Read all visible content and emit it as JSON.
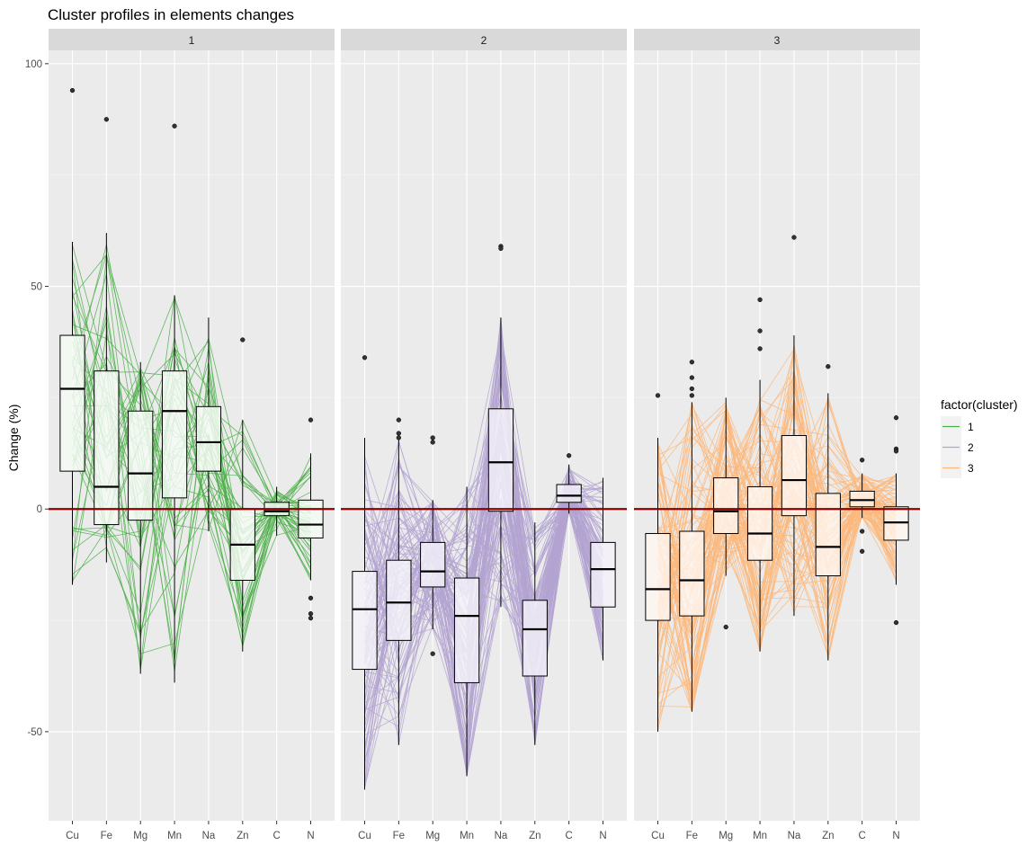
{
  "chart_data": {
    "type": "box",
    "title": "Cluster profiles in elements changes",
    "ylabel": "Change (%)",
    "xlabel": "",
    "categories": [
      "Cu",
      "Fe",
      "Mg",
      "Mn",
      "Na",
      "Zn",
      "C",
      "N"
    ],
    "y_ticks": [
      -50,
      0,
      50,
      100
    ],
    "ylim": [
      -70,
      103
    ],
    "reference_line": {
      "y": 0,
      "color": "#8B0000"
    },
    "legend": {
      "title": "factor(cluster)",
      "position": "right"
    },
    "panels": [
      {
        "strip": "1",
        "series_name": "1",
        "line_color": "#4DAF4A",
        "box_fill": "#F4FAF4",
        "boxes": [
          {
            "cat": "Cu",
            "lo": -17,
            "q1": 8.5,
            "med": 27,
            "q3": 39,
            "hi": 60,
            "out": [
              94
            ]
          },
          {
            "cat": "Fe",
            "lo": -12,
            "q1": -3.5,
            "med": 5,
            "q3": 31,
            "hi": 62,
            "out": [
              87.5
            ]
          },
          {
            "cat": "Mg",
            "lo": -37,
            "q1": -2.5,
            "med": 8,
            "q3": 22,
            "hi": 33,
            "out": []
          },
          {
            "cat": "Mn",
            "lo": -39,
            "q1": 2.5,
            "med": 22,
            "q3": 31,
            "hi": 48,
            "out": [
              86
            ]
          },
          {
            "cat": "Na",
            "lo": -5,
            "q1": 8.5,
            "med": 15,
            "q3": 23,
            "hi": 43,
            "out": []
          },
          {
            "cat": "Zn",
            "lo": -32,
            "q1": -16,
            "med": -8,
            "q3": 0,
            "hi": 20,
            "out": [
              38
            ]
          },
          {
            "cat": "C",
            "lo": -6,
            "q1": -1.5,
            "med": -0.5,
            "q3": 1.5,
            "hi": 5,
            "out": []
          },
          {
            "cat": "N",
            "lo": -16,
            "q1": -6.5,
            "med": -3.5,
            "q3": 2,
            "hi": 12.5,
            "out": [
              20,
              -20,
              -23.5,
              -24.5
            ]
          }
        ]
      },
      {
        "strip": "2",
        "series_name": "2",
        "line_color": "#B3A3D1",
        "box_fill": "#F4F2F9",
        "boxes": [
          {
            "cat": "Cu",
            "lo": -63,
            "q1": -36,
            "med": -22.5,
            "q3": -14,
            "hi": 16,
            "out": [
              34
            ]
          },
          {
            "cat": "Fe",
            "lo": -53,
            "q1": -29.5,
            "med": -21,
            "q3": -11.5,
            "hi": 15.5,
            "out": [
              20,
              17,
              16
            ]
          },
          {
            "cat": "Mg",
            "lo": -27,
            "q1": -17.5,
            "med": -14,
            "q3": -7.5,
            "hi": 2,
            "out": [
              16,
              15,
              -32.5
            ]
          },
          {
            "cat": "Mn",
            "lo": -60,
            "q1": -39,
            "med": -24,
            "q3": -15.5,
            "hi": 5,
            "out": []
          },
          {
            "cat": "Na",
            "lo": -22,
            "q1": -0.5,
            "med": 10.5,
            "q3": 22.5,
            "hi": 43,
            "out": [
              59,
              58.5
            ]
          },
          {
            "cat": "Zn",
            "lo": -53,
            "q1": -37.5,
            "med": -27,
            "q3": -20.5,
            "hi": -3,
            "out": []
          },
          {
            "cat": "C",
            "lo": -1,
            "q1": 1.5,
            "med": 3,
            "q3": 5.5,
            "hi": 10,
            "out": [
              12
            ]
          },
          {
            "cat": "N",
            "lo": -34,
            "q1": -22,
            "med": -13.5,
            "q3": -7.5,
            "hi": 7,
            "out": []
          }
        ]
      },
      {
        "strip": "3",
        "series_name": "3",
        "line_color": "#FDB77A",
        "box_fill": "#FFF5EE",
        "boxes": [
          {
            "cat": "Cu",
            "lo": -50,
            "q1": -25,
            "med": -18,
            "q3": -5.5,
            "hi": 16,
            "out": [
              25.5
            ]
          },
          {
            "cat": "Fe",
            "lo": -45.5,
            "q1": -24,
            "med": -16,
            "q3": -5,
            "hi": 24,
            "out": [
              33,
              29.5,
              27,
              25.5
            ]
          },
          {
            "cat": "Mg",
            "lo": -15,
            "q1": -5.5,
            "med": -0.5,
            "q3": 7,
            "hi": 25,
            "out": [
              -26.5
            ]
          },
          {
            "cat": "Mn",
            "lo": -32,
            "q1": -11.5,
            "med": -5.5,
            "q3": 5,
            "hi": 29,
            "out": [
              47,
              40,
              36
            ]
          },
          {
            "cat": "Na",
            "lo": -24,
            "q1": -1.5,
            "med": 6.5,
            "q3": 16.5,
            "hi": 39,
            "out": [
              61
            ]
          },
          {
            "cat": "Zn",
            "lo": -34,
            "q1": -15,
            "med": -8.5,
            "q3": 3.5,
            "hi": 26,
            "out": [
              32
            ]
          },
          {
            "cat": "C",
            "lo": -2,
            "q1": 0.5,
            "med": 2,
            "q3": 4,
            "hi": 8,
            "out": [
              11,
              -5,
              -9.5
            ]
          },
          {
            "cat": "N",
            "lo": -17,
            "q1": -7,
            "med": -3,
            "q3": 0.5,
            "hi": 8,
            "out": [
              20.5,
              13.5,
              13,
              -25.5
            ]
          }
        ]
      }
    ]
  }
}
